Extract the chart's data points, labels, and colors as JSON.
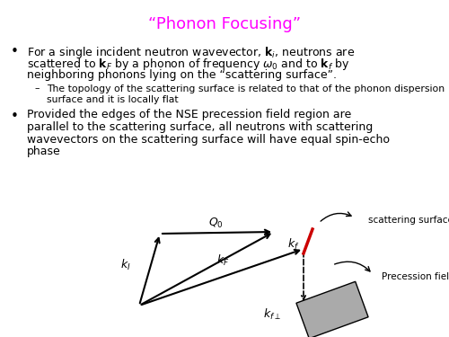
{
  "title": "“Phonon Focusing”",
  "title_color": "#ff00ff",
  "title_fontsize": 13,
  "bg_color": "#ffffff",
  "text_fontsize": 9.0,
  "sub_fontsize": 7.8,
  "bullet_symbol": "•",
  "dash_symbol": "–",
  "b1_line1": "For a single incident neutron wavevector, $\\mathbf{k}_i$, neutrons are",
  "b1_line2": "scattered to $\\mathbf{k}_F$ by a phonon of frequency $\\omega_0$ and to $\\mathbf{k}_f$ by",
  "b1_line3": "neighboring phonons lying on the “scattering surface”.",
  "b1s_line1": "The topology of the scattering surface is related to that of the phonon dispersion",
  "b1s_line2": "surface and it is locally flat",
  "b2_line1": "Provided the edges of the NSE precession field region are",
  "b2_line2": "parallel to the scattering surface, all neutrons with scattering",
  "b2_line3": "wavevectors on the scattering surface will have equal spin-echo",
  "b2_line4": "phase",
  "rect_color": "#aaaaaa",
  "red_color": "#cc0000",
  "arrow_color": "#000000"
}
